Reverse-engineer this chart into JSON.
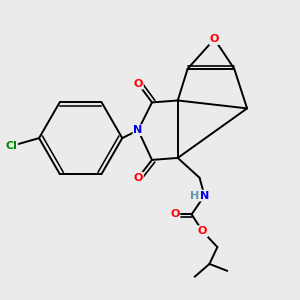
{
  "bg_color": "#ebebeb",
  "atom_colors": {
    "C": "#000000",
    "N": "#0000ee",
    "O": "#ff0000",
    "Cl": "#008800",
    "H": "#6699aa"
  },
  "bond_color": "#000000",
  "bond_width": 1.4,
  "figsize": [
    3.0,
    3.0
  ],
  "dpi": 100
}
